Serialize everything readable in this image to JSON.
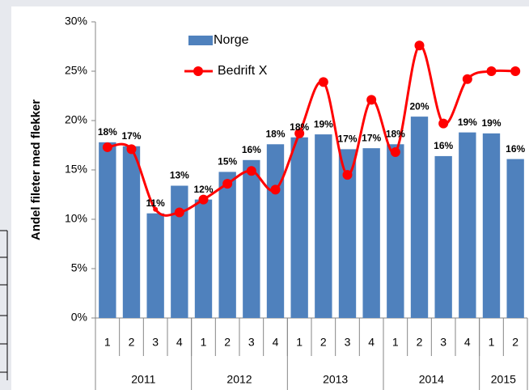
{
  "chart_data": {
    "type": "bar-line",
    "y_label": "Andel fileter med flekker",
    "years": [
      {
        "year": "2011",
        "quarters": [
          "1",
          "2",
          "3",
          "4"
        ]
      },
      {
        "year": "2012",
        "quarters": [
          "1",
          "2",
          "3",
          "4"
        ]
      },
      {
        "year": "2013",
        "quarters": [
          "1",
          "2",
          "3",
          "4"
        ]
      },
      {
        "year": "2014",
        "quarters": [
          "1",
          "2",
          "3",
          "4"
        ]
      },
      {
        "year": "2015",
        "quarters": [
          "1",
          "2"
        ]
      }
    ],
    "series": [
      {
        "name": "Norge",
        "type": "bar",
        "color": "#4f81bd",
        "values": [
          17.8,
          17.4,
          10.6,
          13.4,
          12.0,
          14.8,
          16.0,
          17.6,
          18.3,
          18.6,
          17.1,
          17.2,
          17.6,
          20.4,
          16.4,
          18.8,
          18.7,
          16.1
        ],
        "value_labels": [
          "18%",
          "17%",
          "11%",
          "13%",
          "12%",
          "15%",
          "16%",
          "18%",
          "18%",
          "19%",
          "17%",
          "17%",
          "18%",
          "20%",
          "16%",
          "19%",
          "19%",
          "16%"
        ]
      },
      {
        "name": "Bedrift X",
        "type": "line",
        "color": "#ff0000",
        "values": [
          17.3,
          17.1,
          11.0,
          10.7,
          12.0,
          13.6,
          14.9,
          13.0,
          18.7,
          23.9,
          14.5,
          22.1,
          16.8,
          27.6,
          19.7,
          24.2,
          25.0,
          25.0
        ]
      }
    ],
    "ylim": [
      0,
      30
    ],
    "yticks": [
      {
        "value": 0,
        "label": "0%"
      },
      {
        "value": 5,
        "label": "5%"
      },
      {
        "value": 10,
        "label": "10%"
      },
      {
        "value": 15,
        "label": "15%"
      },
      {
        "value": 20,
        "label": "20%"
      },
      {
        "value": 25,
        "label": "25%"
      },
      {
        "value": 30,
        "label": "30%"
      }
    ],
    "legend": "top-left"
  }
}
